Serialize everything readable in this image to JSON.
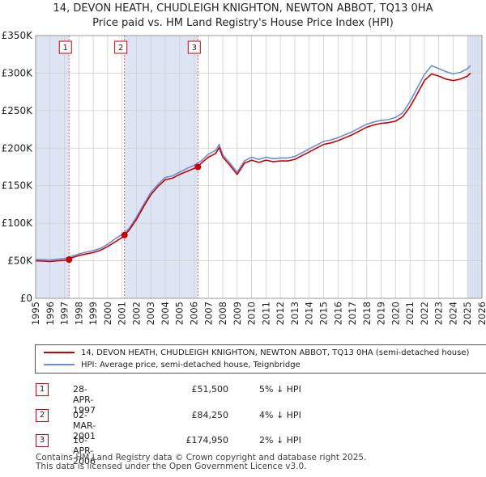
{
  "title_line1": "14, DEVON HEATH, CHUDLEIGH KNIGHTON, NEWTON ABBOT, TQ13 0HA",
  "title_line2": "Price paid vs. HM Land Registry's House Price Index (HPI)",
  "colors": {
    "price_line": "#cc0000",
    "hpi_line": "#6b8fd6",
    "shade": "#dde5f5",
    "marker_line": "#e06060"
  },
  "chart_data": {
    "type": "line",
    "xlim": [
      1995,
      2026
    ],
    "ylim": [
      0,
      350000
    ],
    "y_ticks": [
      0,
      50000,
      100000,
      150000,
      200000,
      250000,
      300000,
      350000
    ],
    "y_tick_labels": [
      "£0",
      "£50K",
      "£100K",
      "£150K",
      "£200K",
      "£250K",
      "£300K",
      "£350K"
    ],
    "x_ticks": [
      1995,
      1996,
      1997,
      1998,
      1999,
      2000,
      2001,
      2002,
      2003,
      2004,
      2005,
      2006,
      2007,
      2008,
      2009,
      2010,
      2011,
      2012,
      2013,
      2014,
      2015,
      2016,
      2017,
      2018,
      2019,
      2020,
      2021,
      2022,
      2023,
      2024,
      2025,
      2026
    ],
    "x_tick_labels": [
      "1995",
      "1996",
      "1997",
      "1998",
      "1999",
      "2000",
      "2001",
      "2002",
      "2003",
      "2004",
      "2005",
      "2006",
      "2007",
      "2008",
      "2009",
      "2010",
      "2011",
      "2012",
      "2013",
      "2014",
      "2015",
      "2016",
      "2017",
      "2018",
      "2019",
      "2020",
      "2021",
      "2022",
      "2023",
      "2024",
      "2025",
      "2026"
    ],
    "grid": true,
    "shaded_spans": [
      [
        1995,
        1997.32
      ],
      [
        2001.17,
        2006.27
      ],
      [
        2025.0,
        2026
      ]
    ],
    "series": [
      {
        "name": "14, DEVON HEATH, CHUDLEIGH KNIGHTON, NEWTON ABBOT, TQ13 0HA (semi-detached house)",
        "color": "#cc0000",
        "x": [
          1995,
          1995.5,
          1996,
          1996.5,
          1997,
          1997.32,
          1997.5,
          1998,
          1998.5,
          1999,
          1999.5,
          2000,
          2000.5,
          2001,
          2001.17,
          2001.5,
          2002,
          2002.5,
          2003,
          2003.5,
          2004,
          2004.5,
          2005,
          2005.5,
          2006,
          2006.27,
          2006.5,
          2007,
          2007.5,
          2007.75,
          2008,
          2008.5,
          2009,
          2009.5,
          2010,
          2010.5,
          2011,
          2011.5,
          2012,
          2012.5,
          2013,
          2013.5,
          2014,
          2014.5,
          2015,
          2015.5,
          2016,
          2016.5,
          2017,
          2017.5,
          2018,
          2018.5,
          2019,
          2019.5,
          2020,
          2020.5,
          2021,
          2021.5,
          2022,
          2022.5,
          2023,
          2023.5,
          2024,
          2024.5,
          2025,
          2025.2
        ],
        "values": [
          50000,
          49500,
          49000,
          50000,
          50500,
          51500,
          54000,
          57000,
          59000,
          61000,
          64000,
          69000,
          75000,
          81000,
          84250,
          91000,
          105000,
          122000,
          138000,
          149000,
          158000,
          160000,
          165000,
          169000,
          173000,
          174950,
          180000,
          188000,
          193000,
          201000,
          188000,
          177000,
          165000,
          180000,
          184000,
          181000,
          184000,
          182000,
          183000,
          183000,
          185000,
          190000,
          195000,
          200000,
          205000,
          207000,
          210000,
          214000,
          218000,
          223000,
          228000,
          231000,
          233000,
          234000,
          236000,
          242000,
          255000,
          272000,
          290000,
          299000,
          296000,
          292000,
          290000,
          292000,
          296000,
          300000
        ]
      },
      {
        "name": "HPI: Average price, semi-detached house, Teignbridge",
        "color": "#6b8fd6",
        "x": [
          1995,
          1995.5,
          1996,
          1996.5,
          1997,
          1997.5,
          1998,
          1998.5,
          1999,
          1999.5,
          2000,
          2000.5,
          2001,
          2001.5,
          2002,
          2002.5,
          2003,
          2003.5,
          2004,
          2004.5,
          2005,
          2005.5,
          2006,
          2006.5,
          2007,
          2007.5,
          2007.75,
          2008,
          2008.5,
          2009,
          2009.5,
          2010,
          2010.5,
          2011,
          2011.5,
          2012,
          2012.5,
          2013,
          2013.5,
          2014,
          2014.5,
          2015,
          2015.5,
          2016,
          2016.5,
          2017,
          2017.5,
          2018,
          2018.5,
          2019,
          2019.5,
          2020,
          2020.5,
          2021,
          2021.5,
          2022,
          2022.5,
          2023,
          2023.5,
          2024,
          2024.5,
          2025,
          2025.2
        ],
        "values": [
          52000,
          51500,
          51000,
          52000,
          53000,
          56000,
          59000,
          61500,
          63500,
          66500,
          72000,
          79000,
          85000,
          93000,
          108000,
          125000,
          141000,
          152000,
          161000,
          163000,
          168000,
          173000,
          177000,
          183000,
          192000,
          197000,
          205000,
          191000,
          180000,
          168000,
          183000,
          188000,
          185000,
          188000,
          186000,
          187000,
          187000,
          189000,
          194000,
          199000,
          204000,
          209000,
          211000,
          214000,
          218000,
          222000,
          227000,
          232000,
          235000,
          237000,
          238000,
          241000,
          247000,
          262000,
          280000,
          298000,
          310000,
          306000,
          302000,
          299000,
          301000,
          306000,
          310000
        ]
      }
    ],
    "sales": [
      {
        "label": "1",
        "x": 1997.32,
        "y": 51500
      },
      {
        "label": "2",
        "x": 2001.17,
        "y": 84250
      },
      {
        "label": "3",
        "x": 2006.27,
        "y": 174950
      }
    ]
  },
  "legend": {
    "property": "14, DEVON HEATH, CHUDLEIGH KNIGHTON, NEWTON ABBOT, TQ13 0HA (semi-detached house)",
    "hpi": "HPI: Average price, semi-detached house, Teignbridge"
  },
  "transactions": [
    {
      "num": "1",
      "date": "28-APR-1997",
      "price": "£51,500",
      "hpi": "5% ↓ HPI"
    },
    {
      "num": "2",
      "date": "02-MAR-2001",
      "price": "£84,250",
      "hpi": "4% ↓ HPI"
    },
    {
      "num": "3",
      "date": "10-APR-2006",
      "price": "£174,950",
      "hpi": "2% ↓ HPI"
    }
  ],
  "footer": {
    "line1": "Contains HM Land Registry data © Crown copyright and database right 2025.",
    "line2": "This data is licensed under the Open Government Licence v3.0."
  }
}
